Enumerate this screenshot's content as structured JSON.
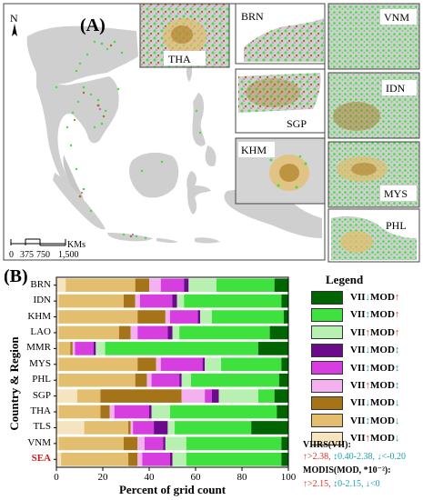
{
  "panel_a": {
    "label": "(A)",
    "north": "N",
    "scale_labels": [
      "0",
      "375",
      "750",
      "1,500"
    ],
    "scale_unit": "KMs",
    "insets": [
      "THA",
      "BRN",
      "VNM",
      "SGP",
      "IDN",
      "KHM",
      "MYS",
      "PHL"
    ]
  },
  "panel_b": {
    "label": "(B)",
    "ylabel": "Country & Region",
    "xlabel": "Percent of grid count",
    "legend_title": "Legend",
    "legend": [
      {
        "viirs_arrow": "↓",
        "mod_arrow": "↑",
        "color": "#006400"
      },
      {
        "viirs_arrow": "↕",
        "mod_arrow": "↑",
        "color": "#3ee13e"
      },
      {
        "viirs_arrow": "↑",
        "mod_arrow": "↑",
        "color": "#b7f0b0"
      },
      {
        "viirs_arrow": "↓",
        "mod_arrow": "↕",
        "color": "#6b0a8a"
      },
      {
        "viirs_arrow": "↕",
        "mod_arrow": "↕",
        "color": "#d63ee0"
      },
      {
        "viirs_arrow": "↑",
        "mod_arrow": "↕",
        "color": "#f3b1f0"
      },
      {
        "viirs_arrow": "↓",
        "mod_arrow": "↓",
        "color": "#a57418"
      },
      {
        "viirs_arrow": "↕",
        "mod_arrow": "↓",
        "color": "#e3be6e"
      },
      {
        "viirs_arrow": "↑",
        "mod_arrow": "↓",
        "color": "#f6e4c0"
      }
    ],
    "viirs_label": "VII",
    "mod_label": "MOD",
    "key_viirs_title": "VIIRS(VII):",
    "key_viirs_line": [
      "↑>2.38,",
      "↕0.40-2.38,",
      "↓<-0.20"
    ],
    "key_modis_title": "MODIS(MOD, *10⁻²):",
    "key_modis_line": [
      "↑>2.15,",
      "↕0-2.15,",
      "↓<0"
    ]
  },
  "chart_data": {
    "type": "bar",
    "orientation": "horizontal",
    "stacked": true,
    "xlabel": "Percent of grid count",
    "ylabel": "Country & Region",
    "xlim": [
      0,
      100
    ],
    "xticks": [
      0,
      20,
      40,
      60,
      80,
      100
    ],
    "categories": [
      "BRN",
      "IDN",
      "KHM",
      "LAO",
      "MMR",
      "MYS",
      "PHL",
      "SGP",
      "THA",
      "TLS",
      "VNM",
      "SEA"
    ],
    "highlight_category": "SEA",
    "series": [
      {
        "legend_index": 8,
        "color": "#f6e4c0",
        "values": [
          4,
          1,
          1,
          1,
          1,
          1,
          1,
          9,
          1,
          12,
          1,
          2
        ]
      },
      {
        "legend_index": 7,
        "color": "#e3be6e",
        "values": [
          30,
          28,
          34,
          26,
          5,
          34,
          33,
          10,
          18,
          19,
          28,
          29
        ]
      },
      {
        "legend_index": 6,
        "color": "#a57418",
        "values": [
          6,
          5,
          12,
          5,
          1,
          8,
          5,
          35,
          4,
          1,
          6,
          4
        ]
      },
      {
        "legend_index": 5,
        "color": "#f3b1f0",
        "values": [
          5,
          2,
          2,
          3,
          1,
          2,
          2,
          10,
          2,
          1,
          3,
          2
        ]
      },
      {
        "legend_index": 4,
        "color": "#d63ee0",
        "values": [
          10,
          14,
          12,
          13,
          8,
          18,
          12,
          3,
          15,
          9,
          8,
          12
        ]
      },
      {
        "legend_index": 3,
        "color": "#6b0a8a",
        "values": [
          2,
          2,
          1,
          2,
          1,
          1,
          1,
          3,
          1,
          6,
          1,
          1
        ]
      },
      {
        "legend_index": 2,
        "color": "#b7f0b0",
        "values": [
          12,
          3,
          5,
          3,
          4,
          7,
          4,
          17,
          8,
          3,
          9,
          6
        ]
      },
      {
        "legend_index": 1,
        "color": "#3ee13e",
        "values": [
          25,
          42,
          31,
          39,
          66,
          26,
          38,
          7,
          46,
          33,
          41,
          41
        ]
      },
      {
        "legend_index": 0,
        "color": "#006400",
        "values": [
          6,
          3,
          2,
          8,
          13,
          3,
          4,
          6,
          5,
          16,
          3,
          3
        ]
      }
    ]
  }
}
